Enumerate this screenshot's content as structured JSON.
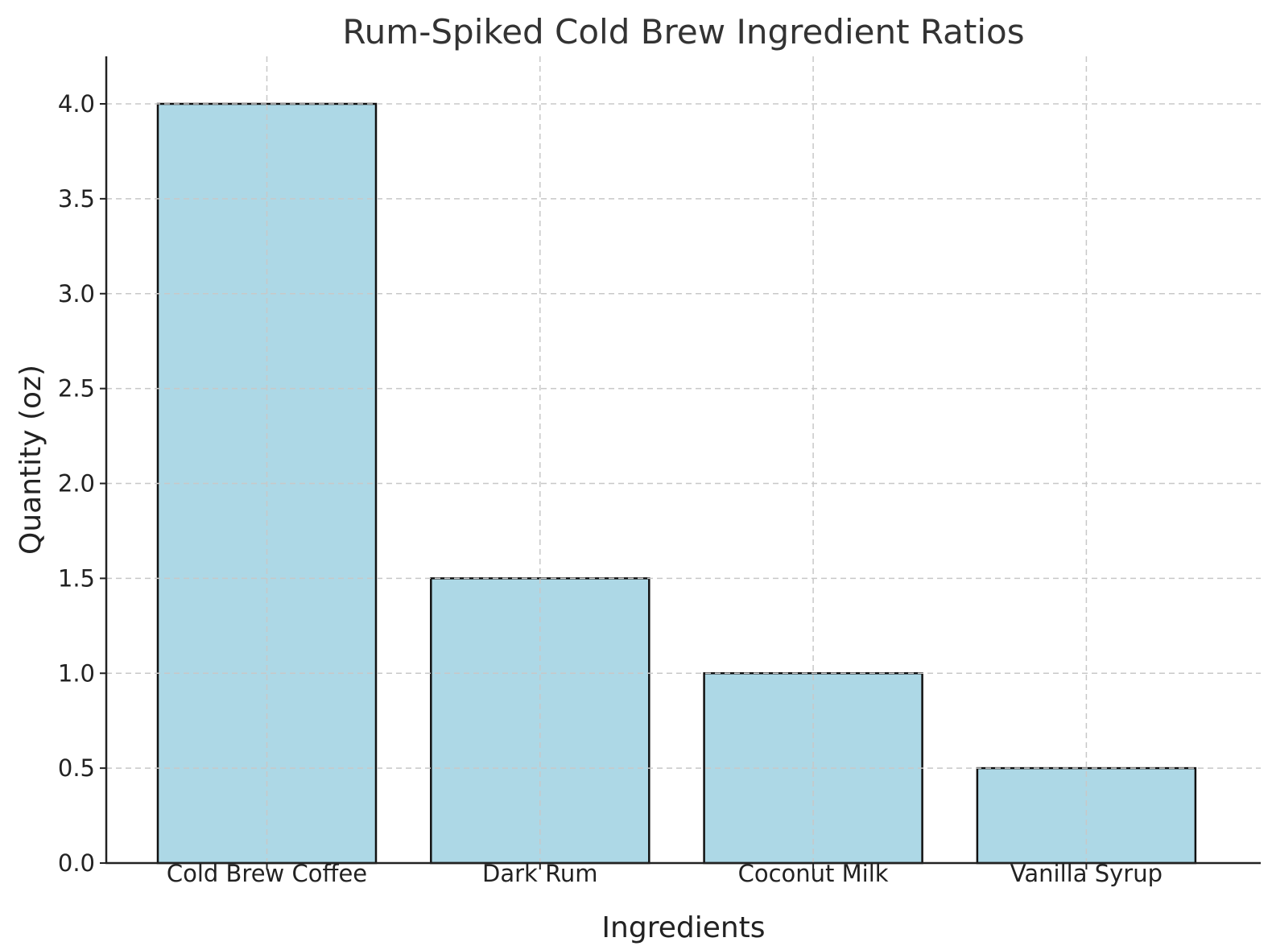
{
  "chart_data": {
    "type": "bar",
    "title": "Rum-Spiked Cold Brew Ingredient Ratios",
    "xlabel": "Ingredients",
    "ylabel": "Quantity (oz)",
    "categories": [
      "Cold Brew Coffee",
      "Dark Rum",
      "Coconut Milk",
      "Vanilla Syrup"
    ],
    "values": [
      4.0,
      1.5,
      1.0,
      0.5
    ],
    "ylim": [
      0,
      4.2
    ],
    "yticks": [
      "0.0",
      "0.5",
      "1.0",
      "1.5",
      "2.0",
      "2.5",
      "3.0",
      "3.5",
      "4.0"
    ],
    "grid": true,
    "bar_color": "#add8e6",
    "edge_color": "#111111"
  }
}
